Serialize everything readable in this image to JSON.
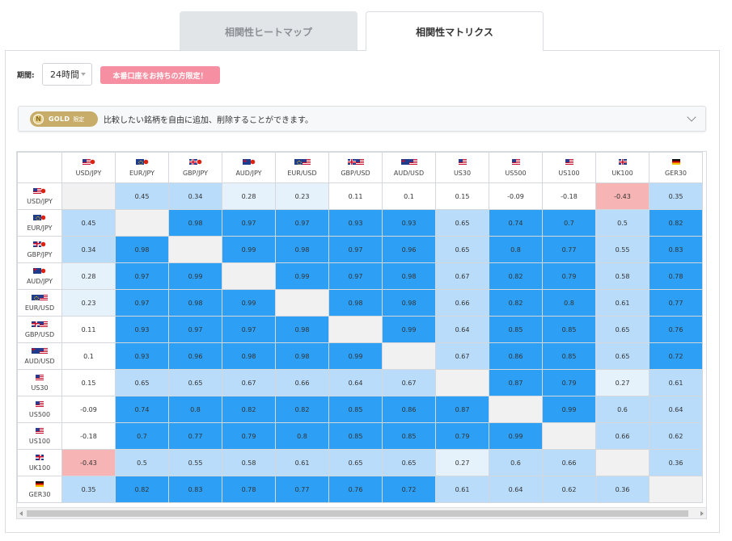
{
  "tabs": [
    {
      "label": "相関性ヒートマップ",
      "active": false
    },
    {
      "label": "相関性マトリクス",
      "active": true
    }
  ],
  "period": {
    "label": "期間:",
    "value": "24時間"
  },
  "exclusive_badge": "本番口座をお持ちの方限定！",
  "gold": {
    "badge": "GOLD",
    "badge_sub": "限定",
    "coin": "N",
    "description": "比較したい銘柄を自由に追加、削除することができます。"
  },
  "matrix": {
    "symbols": [
      {
        "name": "USD/JPY",
        "flags": [
          "us",
          "jp"
        ]
      },
      {
        "name": "EUR/JPY",
        "flags": [
          "eu",
          "jp"
        ]
      },
      {
        "name": "GBP/JPY",
        "flags": [
          "gb",
          "jp"
        ]
      },
      {
        "name": "AUD/JPY",
        "flags": [
          "au",
          "jp"
        ]
      },
      {
        "name": "EUR/USD",
        "flags": [
          "eu",
          "us"
        ]
      },
      {
        "name": "GBP/USD",
        "flags": [
          "gb",
          "us"
        ]
      },
      {
        "name": "AUD/USD",
        "flags": [
          "au",
          "us"
        ]
      },
      {
        "name": "US30",
        "flags": [
          "us"
        ]
      },
      {
        "name": "US500",
        "flags": [
          "us"
        ]
      },
      {
        "name": "US100",
        "flags": [
          "us"
        ]
      },
      {
        "name": "UK100",
        "flags": [
          "gb"
        ]
      },
      {
        "name": "GER30",
        "flags": [
          "de"
        ]
      }
    ],
    "values": [
      [
        "",
        "0.45",
        "0.34",
        "0.28",
        "0.23",
        "0.11",
        "0.1",
        "0.15",
        "-0.09",
        "-0.18",
        "-0.43",
        "0.35"
      ],
      [
        "0.45",
        "",
        "0.98",
        "0.97",
        "0.97",
        "0.93",
        "0.93",
        "0.65",
        "0.74",
        "0.7",
        "0.5",
        "0.82"
      ],
      [
        "0.34",
        "0.98",
        "",
        "0.99",
        "0.98",
        "0.97",
        "0.96",
        "0.65",
        "0.8",
        "0.77",
        "0.55",
        "0.83"
      ],
      [
        "0.28",
        "0.97",
        "0.99",
        "",
        "0.99",
        "0.97",
        "0.98",
        "0.67",
        "0.82",
        "0.79",
        "0.58",
        "0.78"
      ],
      [
        "0.23",
        "0.97",
        "0.98",
        "0.99",
        "",
        "0.98",
        "0.98",
        "0.66",
        "0.82",
        "0.8",
        "0.61",
        "0.77"
      ],
      [
        "0.11",
        "0.93",
        "0.97",
        "0.97",
        "0.98",
        "",
        "0.99",
        "0.64",
        "0.85",
        "0.85",
        "0.65",
        "0.76"
      ],
      [
        "0.1",
        "0.93",
        "0.96",
        "0.98",
        "0.98",
        "0.99",
        "",
        "0.67",
        "0.86",
        "0.85",
        "0.65",
        "0.72"
      ],
      [
        "0.15",
        "0.65",
        "0.65",
        "0.67",
        "0.66",
        "0.64",
        "0.67",
        "",
        "0.87",
        "0.79",
        "0.27",
        "0.61"
      ],
      [
        "-0.09",
        "0.74",
        "0.8",
        "0.82",
        "0.82",
        "0.85",
        "0.86",
        "0.87",
        "",
        "0.99",
        "0.6",
        "0.64"
      ],
      [
        "-0.18",
        "0.7",
        "0.77",
        "0.79",
        "0.8",
        "0.85",
        "0.85",
        "0.79",
        "0.99",
        "",
        "0.66",
        "0.62"
      ],
      [
        "-0.43",
        "0.5",
        "0.55",
        "0.58",
        "0.61",
        "0.65",
        "0.65",
        "0.27",
        "0.6",
        "0.66",
        "",
        "0.36"
      ],
      [
        "0.35",
        "0.82",
        "0.83",
        "0.78",
        "0.77",
        "0.76",
        "0.72",
        "0.61",
        "0.64",
        "0.62",
        "0.36",
        ""
      ]
    ]
  },
  "colors": {
    "high": "#2d9ff5",
    "mid": "#b8dcfa",
    "low": "#e5f2fc",
    "negative": "#f7b4b4",
    "self": "#f1f1f1",
    "badge": "#f58fa1",
    "gold": "#c8ad6a"
  }
}
